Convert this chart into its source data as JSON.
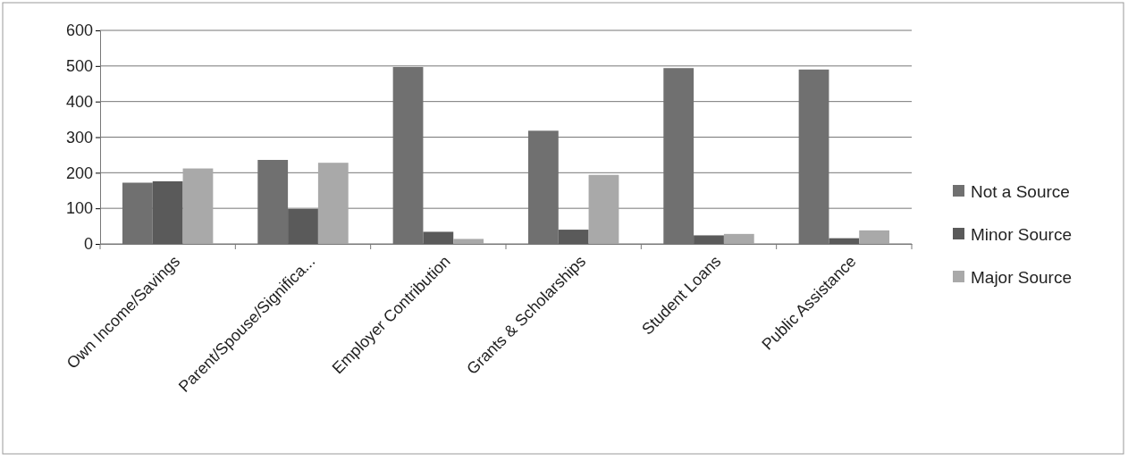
{
  "chart_data": {
    "type": "bar",
    "categories": [
      "Own Income/Savings",
      "Parent/Spouse/Significa...",
      "Employer Contribution",
      "Grants & Scholarships",
      "Student Loans",
      "Public Assistance"
    ],
    "series": [
      {
        "name": "Not a Source",
        "color": "#707070",
        "values": [
          172,
          236,
          497,
          318,
          494,
          490
        ]
      },
      {
        "name": "Minor Source",
        "color": "#5a5a5a",
        "values": [
          176,
          98,
          34,
          40,
          24,
          16
        ]
      },
      {
        "name": "Major Source",
        "color": "#a9a9a9",
        "values": [
          212,
          228,
          14,
          194,
          28,
          38
        ]
      }
    ],
    "ylim": [
      0,
      600
    ],
    "yticks": [
      0,
      100,
      200,
      300,
      400,
      500,
      600
    ],
    "grid": "y",
    "legend": "right"
  }
}
